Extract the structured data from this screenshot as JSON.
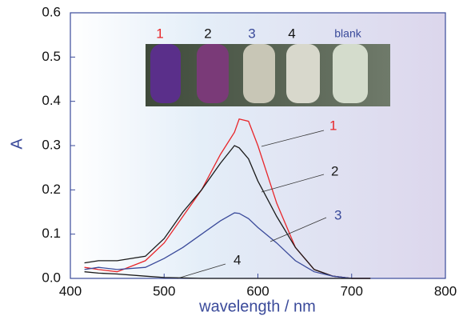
{
  "chart_data": {
    "type": "line",
    "xlabel": "wavelength / nm",
    "ylabel": "A",
    "x": [
      415,
      430,
      450,
      480,
      500,
      520,
      540,
      560,
      575,
      580,
      590,
      600,
      620,
      640,
      660,
      680,
      700,
      720
    ],
    "series": [
      {
        "name": "1",
        "color": "#e8262a",
        "values": [
          0.025,
          0.02,
          0.015,
          0.04,
          0.08,
          0.14,
          0.2,
          0.28,
          0.33,
          0.36,
          0.355,
          0.3,
          0.17,
          0.07,
          0.02,
          0.005,
          0,
          0
        ]
      },
      {
        "name": "2",
        "color": "#1a1a1a",
        "values": [
          0.035,
          0.04,
          0.04,
          0.05,
          0.09,
          0.15,
          0.2,
          0.26,
          0.3,
          0.295,
          0.27,
          0.22,
          0.14,
          0.07,
          0.02,
          0.005,
          0,
          0
        ]
      },
      {
        "name": "3",
        "color": "#3a4a9a",
        "values": [
          0.02,
          0.025,
          0.02,
          0.025,
          0.045,
          0.07,
          0.1,
          0.13,
          0.148,
          0.147,
          0.135,
          0.115,
          0.08,
          0.04,
          0.015,
          0.005,
          0,
          0
        ]
      },
      {
        "name": "4",
        "color": "#1a1a1a",
        "values": [
          0.015,
          0.012,
          0.01,
          0.005,
          0.002,
          0.001,
          0,
          0,
          0,
          0,
          0,
          0,
          0,
          0,
          0,
          0,
          0,
          0
        ]
      }
    ],
    "photo_labels": [
      "1",
      "2",
      "3",
      "4",
      "blank"
    ],
    "xlim": [
      400,
      800
    ],
    "xticks": [
      400,
      500,
      600,
      700,
      800
    ],
    "ylim": [
      0,
      0.6
    ],
    "yticks": [
      {
        "value": 0,
        "label": "0.0"
      },
      0.1,
      0.2,
      0.3,
      0.4,
      0.5,
      0.6
    ]
  }
}
